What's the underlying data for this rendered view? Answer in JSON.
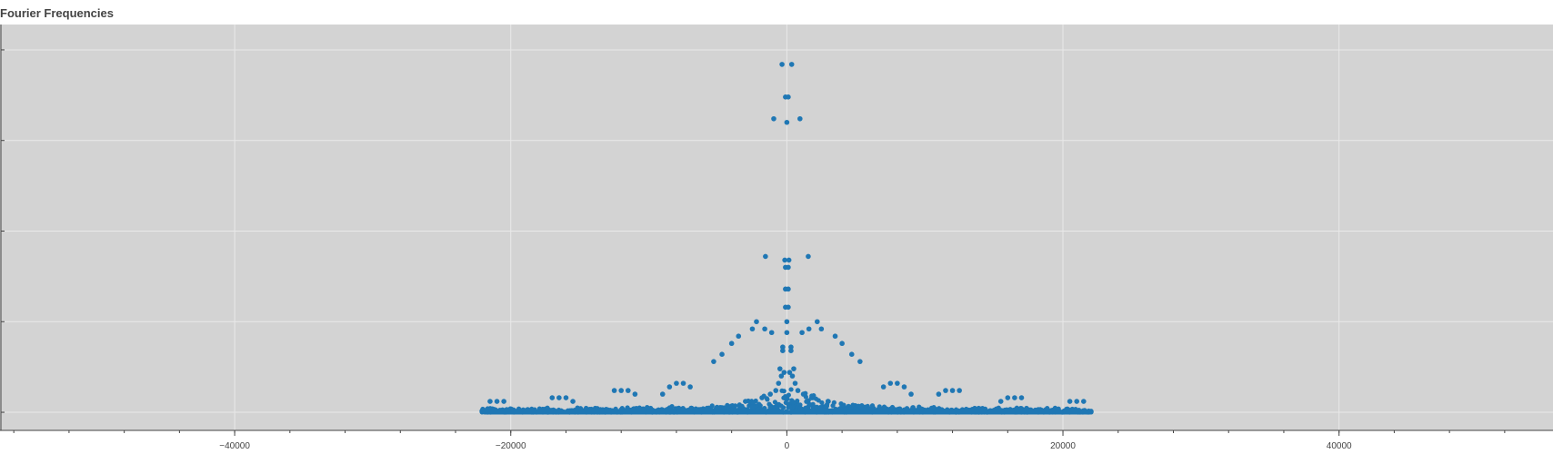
{
  "chart_data": {
    "type": "scatter",
    "title": "Fourier Frequencies",
    "xlabel": "",
    "ylabel": "",
    "xlim": [
      -57000,
      55500
    ],
    "ylim": [
      -0.05,
      1.07
    ],
    "x_ticks": [
      -40000,
      -20000,
      0,
      20000,
      40000
    ],
    "x_tick_labels": [
      "−40000",
      "−20000",
      "0",
      "20000",
      "40000"
    ],
    "y_ticks": [
      0,
      0.25,
      0.5,
      0.75,
      1.0
    ],
    "y_tick_labels": [
      "",
      "",
      "",
      "",
      ""
    ],
    "grid": true,
    "legend": "none",
    "colors": {
      "point": "#1f77b4",
      "background": "#d3d3d3",
      "grid": "#e9e9e9"
    },
    "series": [
      {
        "values_x": [
          -350,
          350,
          -100,
          100,
          -950,
          0,
          950,
          -1550,
          1550,
          -150,
          150,
          -100,
          100,
          -100,
          100,
          -100,
          100,
          0,
          0,
          -2200,
          -1600,
          -1100,
          -300,
          300,
          1100,
          1600,
          2200,
          -4000,
          -3500,
          -2500,
          2500,
          3500,
          4000,
          -5300,
          -4700,
          -300,
          300,
          4700,
          5300,
          -500,
          500,
          -400,
          400,
          -200,
          200,
          -9000,
          -8500,
          -8000,
          -7500,
          -7000,
          7000,
          7500,
          8000,
          8500,
          9000,
          -12500,
          -12000,
          -11500,
          -11000,
          11000,
          11500,
          12000,
          12500,
          -17000,
          -16500,
          -16000,
          -15500,
          15500,
          16000,
          16500,
          17000,
          -21500,
          -21000,
          -20500,
          20500,
          21000,
          21500,
          -600,
          600,
          -800,
          800,
          -1200,
          1200,
          -1800,
          1800,
          -3000,
          3000
        ],
        "values_y": [
          0.96,
          0.96,
          0.87,
          0.87,
          0.81,
          0.8,
          0.81,
          0.43,
          0.43,
          0.42,
          0.42,
          0.4,
          0.4,
          0.34,
          0.34,
          0.29,
          0.29,
          0.25,
          0.22,
          0.25,
          0.23,
          0.22,
          0.18,
          0.18,
          0.22,
          0.23,
          0.25,
          0.19,
          0.21,
          0.23,
          0.23,
          0.21,
          0.19,
          0.14,
          0.16,
          0.17,
          0.17,
          0.16,
          0.14,
          0.12,
          0.12,
          0.1,
          0.1,
          0.11,
          0.11,
          0.05,
          0.07,
          0.08,
          0.08,
          0.07,
          0.07,
          0.08,
          0.08,
          0.07,
          0.05,
          0.06,
          0.06,
          0.06,
          0.05,
          0.05,
          0.06,
          0.06,
          0.06,
          0.04,
          0.04,
          0.04,
          0.03,
          0.03,
          0.04,
          0.04,
          0.04,
          0.03,
          0.03,
          0.03,
          0.03,
          0.03,
          0.03,
          0.08,
          0.08,
          0.06,
          0.06,
          0.05,
          0.05,
          0.04,
          0.04,
          0.03,
          0.03
        ]
      }
    ]
  }
}
